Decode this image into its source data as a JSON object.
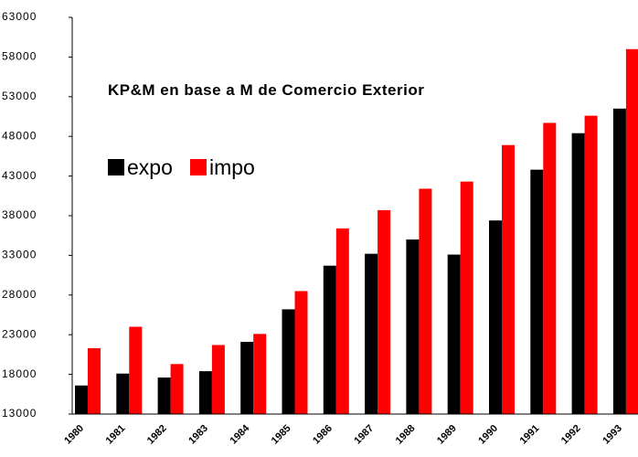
{
  "chart_data": {
    "type": "bar",
    "annotation": "KP&M en base a M de Comercio Exterior",
    "categories": [
      "1980",
      "1981",
      "1982",
      "1983",
      "1984",
      "1985",
      "1986",
      "1987",
      "1988",
      "1989",
      "1990",
      "1991",
      "1992",
      "1993"
    ],
    "series": [
      {
        "name": "expo",
        "color": "#000000",
        "values": [
          16600,
          18100,
          17600,
          18400,
          22100,
          26200,
          31700,
          33200,
          35000,
          33100,
          37400,
          43800,
          48400,
          51500
        ]
      },
      {
        "name": "impo",
        "color": "#ff0000",
        "values": [
          21300,
          24000,
          19300,
          21700,
          23100,
          28500,
          36400,
          38700,
          41400,
          42300,
          46900,
          49700,
          50600,
          59000
        ]
      }
    ],
    "ylim": [
      13000,
      63000
    ],
    "yticks": [
      13000,
      18000,
      23000,
      28000,
      33000,
      38000,
      43000,
      48000,
      53000,
      58000,
      63000
    ],
    "grid": false
  }
}
